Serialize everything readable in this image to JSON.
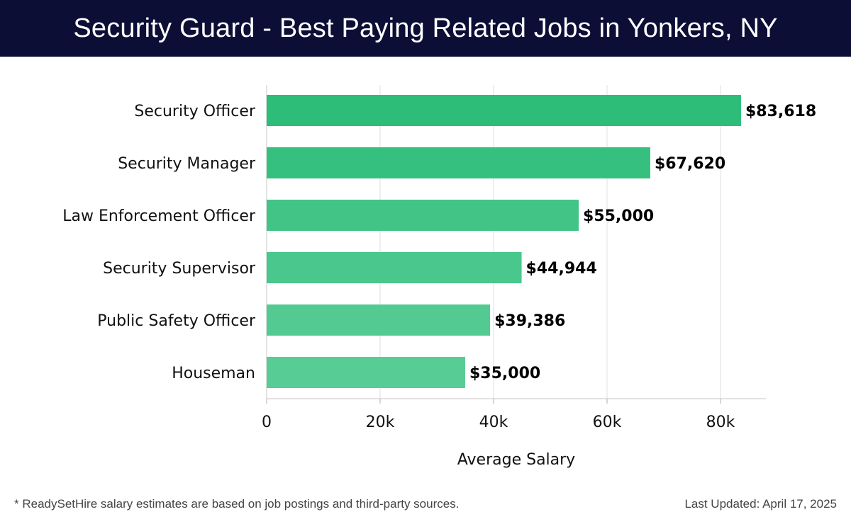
{
  "header": {
    "title": "Security Guard - Best Paying Related Jobs in Yonkers, NY"
  },
  "chart_data": {
    "type": "bar",
    "orientation": "horizontal",
    "title": "Security Guard - Best Paying Related Jobs in Yonkers, NY",
    "xlabel": "Average Salary",
    "ylabel": "",
    "categories": [
      "Security Officer",
      "Security Manager",
      "Law Enforcement Officer",
      "Security Supervisor",
      "Public Safety Officer",
      "Houseman"
    ],
    "values": [
      83618,
      67620,
      55000,
      44944,
      39386,
      35000
    ],
    "value_labels": [
      "$83,618",
      "$67,620",
      "$55,000",
      "$44,944",
      "$39,386",
      "$35,000"
    ],
    "xlim": [
      0,
      88000
    ],
    "x_ticks": [
      0,
      20000,
      40000,
      60000,
      80000
    ],
    "x_tick_labels": [
      "0",
      "20k",
      "40k",
      "60k",
      "80k"
    ],
    "grid": true,
    "legend": "none",
    "colors": [
      "#2dbd79",
      "#35c080",
      "#43c487",
      "#4ac78c",
      "#52ca92",
      "#57cc95"
    ]
  },
  "footer": {
    "note": "* ReadySetHire salary estimates are based on job postings and third-party sources.",
    "updated": "Last Updated: April 17, 2025"
  }
}
